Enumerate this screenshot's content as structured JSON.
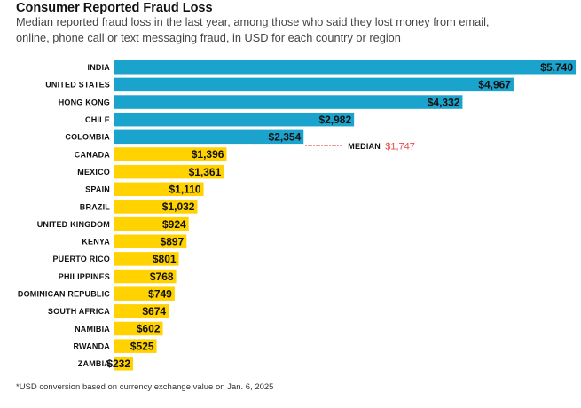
{
  "title": "Consumer Reported Fraud Loss",
  "subtitle": "Median reported fraud loss in the last year, among those who said they lost money from email, online, phone call or text messaging fraud, in USD for each country or region",
  "footnote": "*USD conversion based on currency exchange value on Jan. 6, 2025",
  "chart_data": {
    "type": "bar",
    "orientation": "horizontal",
    "categories": [
      "INDIA",
      "UNITED STATES",
      "HONG KONG",
      "CHILE",
      "COLOMBIA",
      "CANADA",
      "MEXICO",
      "SPAIN",
      "BRAZIL",
      "UNITED KINGDOM",
      "KENYA",
      "PUERTO RICO",
      "PHILIPPINES",
      "DOMINICAN REPUBLIC",
      "SOUTH AFRICA",
      "NAMIBIA",
      "RWANDA",
      "ZAMBIA"
    ],
    "values": [
      5740,
      4967,
      4332,
      2982,
      2354,
      1396,
      1361,
      1110,
      1032,
      924,
      897,
      801,
      768,
      749,
      674,
      602,
      525,
      232
    ],
    "value_labels": [
      "$5,740",
      "$4,967",
      "$4,332",
      "$2,982",
      "$2,354",
      "$1,396",
      "$1,361",
      "$1,110",
      "$1,032",
      "$924",
      "$897",
      "$801",
      "$768",
      "$749",
      "$674",
      "$602",
      "$525",
      "$232"
    ],
    "median": {
      "label": "MEDIAN",
      "value": 1747,
      "value_label": "$1,747"
    },
    "colors": {
      "above_median": "#1aa3cc",
      "below_median": "#ffd200",
      "median_value": "#e84a4a",
      "median_line": "#e84a4a"
    },
    "xlim": [
      0,
      5740
    ],
    "grid": false,
    "legend": "none"
  }
}
